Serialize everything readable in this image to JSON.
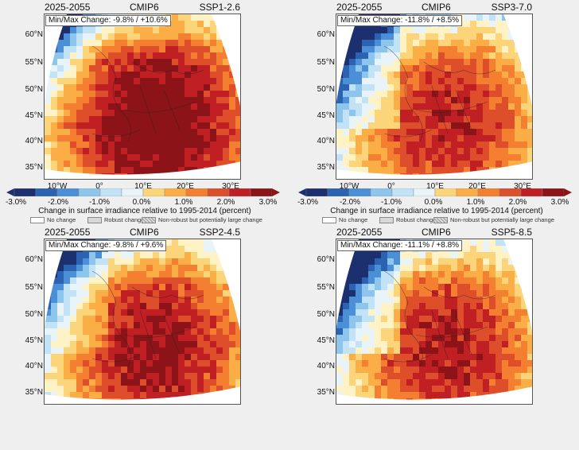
{
  "panels": [
    {
      "period": "2025-2055",
      "model": "CMIP6",
      "scenario": "SSP1-2.6",
      "minmax": "Min/Max Change: -9.8% / +10.6%"
    },
    {
      "period": "2025-2055",
      "model": "CMIP6",
      "scenario": "SSP3-7.0",
      "minmax": "Min/Max Change: -11.8% / +8.5%"
    },
    {
      "period": "2025-2055",
      "model": "CMIP6",
      "scenario": "SSP2-4.5",
      "minmax": "Min/Max Change: -9.8% / +9.6%"
    },
    {
      "period": "2025-2055",
      "model": "CMIP6",
      "scenario": "SSP5-8.5",
      "minmax": "Min/Max Change: -11.1% / +8.8%"
    }
  ],
  "lat_labels": [
    "60°N",
    "55°N",
    "50°N",
    "45°N",
    "40°N",
    "35°N"
  ],
  "lon_labels": [
    "10°W",
    "0°",
    "10°E",
    "20°E",
    "30°E"
  ],
  "colorbar": {
    "ticks": [
      "-3.0%",
      "-2.0%",
      "-1.0%",
      "0.0%",
      "1.0%",
      "2.0%",
      "3.0%"
    ],
    "label": "Change in surface irradiance relative to 1995-2014 (percent)",
    "colors": [
      "#1c2f6e",
      "#2c62b2",
      "#4b90d6",
      "#8dc5ec",
      "#c2e2f5",
      "#e8f3fa",
      "#fff3c6",
      "#fcd57a",
      "#fbae45",
      "#f47f30",
      "#de4e2a",
      "#c01f24",
      "#8c1418"
    ]
  },
  "legend": [
    "No change",
    "Robust change",
    "Non-robust but potentially large change"
  ]
}
